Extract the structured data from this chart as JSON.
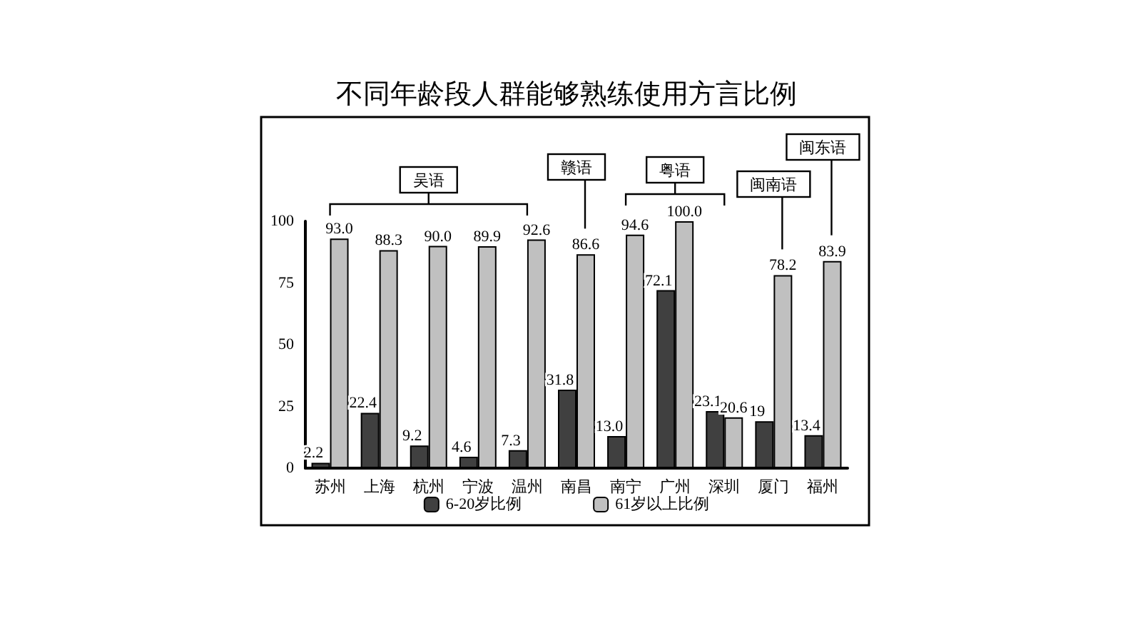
{
  "chart_data": {
    "type": "bar",
    "title": "不同年龄段人群能够熟练使用方言比例",
    "categories": [
      "苏州",
      "上海",
      "杭州",
      "宁波",
      "温州",
      "南昌",
      "南宁",
      "广州",
      "深圳",
      "厦门",
      "福州"
    ],
    "series": [
      {
        "name": "6-20岁比例",
        "color": "#404040",
        "values": [
          2.2,
          22.4,
          9.2,
          4.6,
          7.3,
          31.8,
          13.0,
          72.1,
          23.1,
          19,
          13.4
        ],
        "value_labels": [
          "2.2",
          "22.4",
          "9.2",
          "4.6",
          "7.3",
          "31.8",
          "13.0",
          "72.1",
          "23.1",
          "19",
          "13.4"
        ]
      },
      {
        "name": "61岁以上比例",
        "color": "#c0c0c0",
        "values": [
          93.0,
          88.3,
          90.0,
          89.9,
          92.6,
          86.6,
          94.6,
          100.0,
          20.6,
          78.2,
          83.9
        ],
        "value_labels": [
          "93.0",
          "88.3",
          "90.0",
          "89.9",
          "92.6",
          "86.6",
          "94.6",
          "100.0",
          "20.6",
          "78.2",
          "83.9"
        ]
      }
    ],
    "ylim": [
      0,
      100
    ],
    "yticks": [
      0,
      25,
      50,
      75,
      100
    ],
    "grid": false,
    "legend": "bottom",
    "annotations": [
      "吴语",
      "赣语",
      "粤语",
      "闽南语",
      "闽东语"
    ]
  }
}
